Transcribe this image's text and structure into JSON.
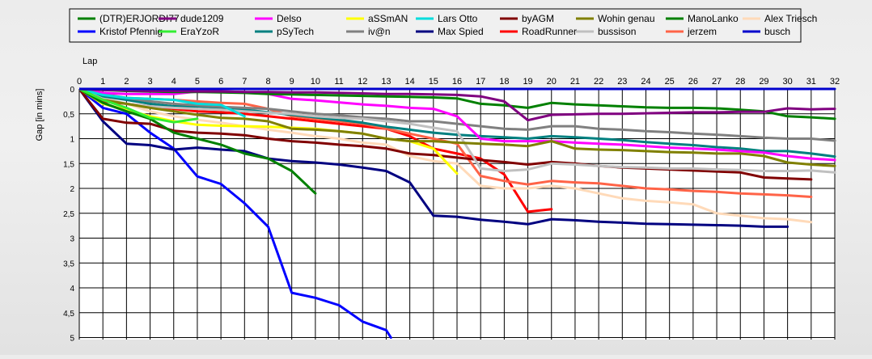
{
  "chart_data": {
    "type": "line",
    "xlabel": "Lap",
    "ylabel": "Gap [in mins]",
    "xlim": [
      0,
      32
    ],
    "ylim": [
      0,
      5
    ],
    "y_inverted": true,
    "grid": true,
    "legend_position": "top",
    "x_ticks": [
      "0",
      "1",
      "2",
      "3",
      "4",
      "5",
      "6",
      "7",
      "8",
      "9",
      "10",
      "11",
      "12",
      "13",
      "14",
      "15",
      "16",
      "17",
      "18",
      "19",
      "20",
      "21",
      "22",
      "23",
      "24",
      "25",
      "26",
      "27",
      "28",
      "29",
      "30",
      "31",
      "32"
    ],
    "y_ticks": [
      "0",
      "0,5",
      "1",
      "1,5",
      "2",
      "2,5",
      "3",
      "3,5",
      "4",
      "4,5",
      "5"
    ],
    "series": [
      {
        "name": "(DTR)ERJORDI77",
        "color": "#008000",
        "x": [
          0,
          1,
          2,
          3,
          4,
          5,
          6,
          7,
          8,
          9,
          10,
          11,
          12,
          13,
          14,
          15,
          16,
          17,
          18,
          19,
          20,
          21,
          22,
          23,
          24,
          25,
          26,
          27,
          28,
          29,
          30,
          31,
          32
        ],
        "y": [
          0,
          0.02,
          0.04,
          0.05,
          0.06,
          0.06,
          0.07,
          0.08,
          0.1,
          0.11,
          0.12,
          0.13,
          0.14,
          0.15,
          0.16,
          0.17,
          0.19,
          0.3,
          0.33,
          0.38,
          0.28,
          0.31,
          0.33,
          0.35,
          0.37,
          0.38,
          0.38,
          0.39,
          0.42,
          0.45,
          0.55,
          0.57,
          0.6
        ]
      },
      {
        "name": "Kristof Pfennig",
        "color": "#0000FF",
        "x": [
          0,
          1,
          2,
          3,
          4,
          5,
          6,
          7,
          8,
          9,
          10,
          11,
          12,
          13,
          13.2
        ],
        "y": [
          0,
          0.38,
          0.5,
          0.88,
          1.2,
          1.76,
          1.91,
          2.3,
          2.77,
          4.1,
          4.2,
          4.35,
          4.68,
          4.85,
          5
        ]
      },
      {
        "name": "dude1209",
        "color": "#800080",
        "x": [
          0,
          1,
          2,
          3,
          4,
          5,
          6,
          7,
          8,
          9,
          10,
          11,
          12,
          13,
          14,
          15,
          16,
          17,
          18,
          19,
          20,
          21,
          22,
          23,
          24,
          25,
          26,
          27,
          28,
          29,
          30,
          31,
          32
        ],
        "y": [
          0,
          0.02,
          0.03,
          0.04,
          0.04,
          0.05,
          0.05,
          0.06,
          0.06,
          0.07,
          0.07,
          0.08,
          0.09,
          0.1,
          0.1,
          0.11,
          0.12,
          0.15,
          0.25,
          0.63,
          0.52,
          0.51,
          0.5,
          0.5,
          0.49,
          0.48,
          0.47,
          0.47,
          0.46,
          0.46,
          0.39,
          0.41,
          0.4
        ]
      },
      {
        "name": "EraYzoR",
        "color": "#33EE33",
        "x": [
          0,
          1,
          2,
          3,
          4,
          5
        ],
        "y": [
          0,
          0.22,
          0.38,
          0.58,
          0.67,
          0.6
        ]
      },
      {
        "name": "Delso",
        "color": "#FF00FF",
        "x": [
          0,
          1,
          2,
          3,
          4,
          5,
          6,
          7,
          8,
          9,
          10,
          11,
          12,
          13,
          14,
          15,
          16,
          17,
          18,
          19,
          20,
          21,
          22,
          23,
          24,
          25,
          26,
          27,
          28,
          29,
          30,
          31,
          32
        ],
        "y": [
          0,
          0.08,
          0.1,
          0.1,
          0.1,
          0.05,
          0.05,
          0.06,
          0.1,
          0.2,
          0.23,
          0.27,
          0.31,
          0.34,
          0.38,
          0.4,
          0.55,
          1.0,
          1.05,
          1.05,
          1.05,
          1.08,
          1.1,
          1.12,
          1.15,
          1.18,
          1.2,
          1.22,
          1.25,
          1.28,
          1.35,
          1.4,
          1.43
        ]
      },
      {
        "name": "pSyTech",
        "color": "#008080",
        "x": [
          0,
          1,
          2,
          3,
          4,
          5,
          6,
          7,
          8,
          9,
          10,
          11,
          12,
          13,
          14,
          15,
          16,
          17,
          18,
          19,
          20,
          21,
          22,
          23,
          24,
          25,
          26,
          27,
          28,
          29,
          30,
          31,
          32
        ],
        "y": [
          0,
          0.15,
          0.22,
          0.3,
          0.35,
          0.35,
          0.38,
          0.42,
          0.47,
          0.52,
          0.57,
          0.62,
          0.68,
          0.76,
          0.82,
          0.88,
          0.92,
          0.95,
          0.97,
          1.0,
          0.95,
          0.97,
          1.0,
          1.03,
          1.07,
          1.1,
          1.13,
          1.17,
          1.2,
          1.25,
          1.25,
          1.3,
          1.36
        ]
      },
      {
        "name": "aSSmAN",
        "color": "#FFFF00",
        "x": [
          0,
          1,
          2,
          3,
          4,
          5,
          6,
          7,
          8,
          9,
          10,
          11,
          12,
          13,
          14,
          15,
          16
        ],
        "y": [
          0,
          0.3,
          0.42,
          0.55,
          0.65,
          0.72,
          0.74,
          0.75,
          0.76,
          0.78,
          0.8,
          0.85,
          0.9,
          1.0,
          1.05,
          1.2,
          1.7
        ]
      },
      {
        "name": "iv@n",
        "color": "#808080",
        "x": [
          0,
          1,
          2,
          3,
          4,
          5,
          6,
          7,
          8,
          9,
          10,
          11,
          12,
          13,
          14,
          15,
          16,
          17,
          18,
          19,
          20,
          21,
          22,
          23,
          24,
          25,
          26,
          27,
          28,
          29,
          30,
          31,
          32
        ],
        "y": [
          0,
          0.1,
          0.18,
          0.25,
          0.3,
          0.33,
          0.36,
          0.38,
          0.4,
          0.45,
          0.5,
          0.53,
          0.57,
          0.6,
          0.65,
          0.65,
          0.7,
          0.75,
          0.8,
          0.82,
          0.75,
          0.75,
          0.8,
          0.82,
          0.85,
          0.87,
          0.9,
          0.92,
          0.95,
          0.98,
          1.0,
          1.0,
          1.04
        ]
      },
      {
        "name": "Lars Otto",
        "color": "#00DDDD",
        "x": [
          0,
          1,
          2,
          3,
          4,
          5,
          6,
          7
        ],
        "y": [
          0,
          0.12,
          0.18,
          0.2,
          0.22,
          0.3,
          0.32,
          0.55
        ]
      },
      {
        "name": "Max Spied",
        "color": "#000080",
        "x": [
          0,
          1,
          2,
          3,
          4,
          5,
          6,
          7,
          8,
          9,
          10,
          11,
          12,
          13,
          14,
          15,
          16,
          17,
          18,
          19,
          20,
          21,
          22,
          23,
          24,
          25,
          26,
          27,
          28,
          29,
          30
        ],
        "y": [
          0,
          0.65,
          1.1,
          1.13,
          1.22,
          1.18,
          1.22,
          1.25,
          1.4,
          1.45,
          1.48,
          1.52,
          1.58,
          1.65,
          1.88,
          2.55,
          2.57,
          2.63,
          2.67,
          2.72,
          2.62,
          2.64,
          2.67,
          2.69,
          2.71,
          2.72,
          2.73,
          2.74,
          2.75,
          2.77,
          2.77
        ]
      },
      {
        "name": "byAGM",
        "color": "#800000",
        "x": [
          0,
          1,
          2,
          3,
          4,
          5,
          6,
          7,
          8,
          9,
          10,
          11,
          12,
          13,
          14,
          15,
          16,
          17,
          18,
          19,
          20,
          21,
          22,
          23,
          24,
          25,
          26,
          27,
          28,
          29,
          30,
          31
        ],
        "y": [
          0,
          0.6,
          0.68,
          0.7,
          0.84,
          0.88,
          0.9,
          0.93,
          1.0,
          1.05,
          1.08,
          1.12,
          1.15,
          1.2,
          1.3,
          1.33,
          1.38,
          1.43,
          1.47,
          1.52,
          1.47,
          1.5,
          1.55,
          1.58,
          1.6,
          1.62,
          1.64,
          1.66,
          1.68,
          1.78,
          1.8,
          1.82
        ]
      },
      {
        "name": "RoadRunner",
        "color": "#FF0000",
        "x": [
          0,
          1,
          2,
          3,
          4,
          5,
          6,
          7,
          8,
          9,
          10,
          11,
          12,
          13,
          14,
          15,
          16,
          17,
          18,
          19,
          20
        ],
        "y": [
          0,
          0.25,
          0.3,
          0.35,
          0.4,
          0.45,
          0.47,
          0.5,
          0.55,
          0.6,
          0.65,
          0.7,
          0.75,
          0.8,
          0.95,
          1.2,
          1.3,
          1.4,
          1.72,
          2.47,
          2.42
        ]
      },
      {
        "name": "Wohin genau",
        "color": "#808000",
        "x": [
          0,
          1,
          2,
          3,
          4,
          5,
          6,
          7,
          8,
          9,
          10,
          11,
          12,
          13,
          14,
          15,
          16,
          17,
          18,
          19,
          20,
          21,
          22,
          23,
          24,
          25,
          26,
          27,
          28,
          29,
          30,
          31,
          32
        ],
        "y": [
          0,
          0.22,
          0.3,
          0.38,
          0.45,
          0.52,
          0.58,
          0.6,
          0.65,
          0.8,
          0.82,
          0.85,
          0.9,
          1.0,
          1.05,
          1.05,
          1.08,
          1.1,
          1.12,
          1.15,
          1.05,
          1.2,
          1.22,
          1.23,
          1.25,
          1.27,
          1.28,
          1.3,
          1.3,
          1.35,
          1.48,
          1.52,
          1.55
        ]
      },
      {
        "name": "bussison",
        "color": "#C0C0C0",
        "x": [
          0,
          1,
          2,
          3,
          4,
          5,
          6,
          7,
          8,
          9,
          10,
          11,
          12,
          13,
          14,
          15,
          16,
          17,
          18,
          19,
          20,
          21,
          22,
          23,
          24,
          25,
          26,
          27,
          28,
          29,
          30,
          31,
          32
        ],
        "y": [
          0,
          0.2,
          0.3,
          0.35,
          0.38,
          0.4,
          0.42,
          0.45,
          0.48,
          0.5,
          0.55,
          0.58,
          0.6,
          0.65,
          0.7,
          0.78,
          0.85,
          1.6,
          1.65,
          1.62,
          1.5,
          1.52,
          1.55,
          1.57,
          1.58,
          1.6,
          1.6,
          1.62,
          1.63,
          1.65,
          1.65,
          1.64,
          1.68
        ]
      },
      {
        "name": "ManoLanko",
        "color": "#008000",
        "x": [
          0,
          1,
          2,
          3,
          4,
          5,
          6,
          7,
          8,
          9,
          10
        ],
        "y": [
          0,
          0.28,
          0.45,
          0.6,
          0.88,
          1.0,
          1.12,
          1.3,
          1.4,
          1.65,
          2.1
        ]
      },
      {
        "name": "jerzem",
        "color": "#FF6347",
        "x": [
          0,
          1,
          2,
          3,
          4,
          5,
          6,
          7,
          8,
          9,
          10,
          11,
          12,
          13,
          14,
          15,
          16,
          17,
          18,
          19,
          20,
          21,
          22,
          23,
          24,
          25,
          26,
          27,
          28,
          29,
          30,
          31
        ],
        "y": [
          0,
          0.12,
          0.18,
          0.2,
          0.22,
          0.25,
          0.28,
          0.3,
          0.4,
          0.55,
          0.6,
          0.65,
          0.7,
          0.8,
          0.9,
          1.0,
          1.1,
          1.75,
          1.85,
          1.92,
          1.85,
          1.88,
          1.9,
          1.95,
          2.0,
          2.02,
          2.05,
          2.07,
          2.1,
          2.12,
          2.14,
          2.17
        ]
      },
      {
        "name": "Alex Triesch",
        "color": "#FFDAB9",
        "x": [
          0,
          1,
          2,
          3,
          4,
          5,
          6,
          7,
          8,
          9,
          10,
          11,
          12,
          13,
          14,
          15,
          16,
          17,
          18,
          19,
          20,
          21,
          22,
          23,
          24,
          25,
          26,
          27,
          28,
          29,
          30,
          31
        ],
        "y": [
          0,
          0.18,
          0.3,
          0.45,
          0.55,
          0.62,
          0.68,
          0.75,
          0.82,
          0.88,
          0.95,
          1.0,
          1.08,
          1.12,
          1.35,
          1.45,
          1.5,
          1.95,
          2.0,
          2.0,
          1.95,
          2.0,
          2.1,
          2.2,
          2.25,
          2.28,
          2.32,
          2.5,
          2.55,
          2.6,
          2.62,
          2.68
        ]
      },
      {
        "name": "busch",
        "color": "#0000CC",
        "x": [
          0,
          32
        ],
        "y": [
          0,
          0
        ]
      }
    ]
  }
}
